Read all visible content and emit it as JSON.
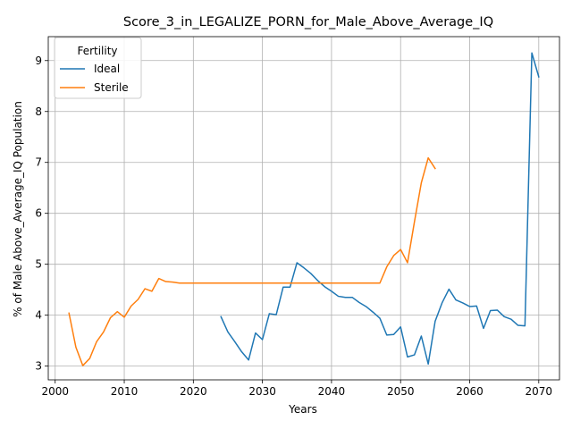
{
  "chart_data": {
    "type": "line",
    "title": "Score_3_in_LEGALIZE_PORN_for_Male_Above_Average_IQ",
    "xlabel": "Years",
    "ylabel": "% of Male Above_Average_IQ Population",
    "xlim": [
      1999,
      2073
    ],
    "ylim": [
      2.73,
      9.47
    ],
    "xticks": [
      2000,
      2010,
      2020,
      2030,
      2040,
      2050,
      2060,
      2070
    ],
    "yticks": [
      3,
      4,
      5,
      6,
      7,
      8,
      9
    ],
    "grid": true,
    "legend": {
      "title": "Fertility",
      "placement": "top-left"
    },
    "series": [
      {
        "name": "Ideal",
        "color": "#1f77b4",
        "x": [
          2024,
          2025,
          2026,
          2027,
          2028,
          2029,
          2030,
          2031,
          2032,
          2033,
          2034,
          2035,
          2036,
          2037,
          2038,
          2039,
          2040,
          2041,
          2042,
          2043,
          2044,
          2045,
          2046,
          2047,
          2048,
          2049,
          2050,
          2051,
          2052,
          2053,
          2054,
          2055,
          2056,
          2057,
          2058,
          2059,
          2060,
          2061,
          2062,
          2063,
          2064,
          2065,
          2066,
          2067,
          2068,
          2069,
          2070
        ],
        "y": [
          3.97,
          3.67,
          3.48,
          3.28,
          3.12,
          3.65,
          3.52,
          4.03,
          4.01,
          4.55,
          4.55,
          5.03,
          4.93,
          4.82,
          4.68,
          4.56,
          4.47,
          4.37,
          4.35,
          4.35,
          4.25,
          4.17,
          4.06,
          3.94,
          3.61,
          3.62,
          3.77,
          3.18,
          3.22,
          3.59,
          3.04,
          3.88,
          4.24,
          4.51,
          4.3,
          4.24,
          4.17,
          4.18,
          3.74,
          4.09,
          4.1,
          3.97,
          3.92,
          3.8,
          3.79,
          9.15,
          8.68
        ]
      },
      {
        "name": "Sterile",
        "color": "#ff7f0e",
        "x": [
          2002,
          2003,
          2004,
          2005,
          2006,
          2007,
          2008,
          2009,
          2010,
          2011,
          2012,
          2013,
          2014,
          2015,
          2016,
          2017,
          2018,
          2019,
          2020,
          2021,
          2022,
          2023,
          2024,
          2025,
          2026,
          2027,
          2028,
          2029,
          2030,
          2031,
          2032,
          2033,
          2034,
          2035,
          2036,
          2037,
          2038,
          2039,
          2040,
          2041,
          2042,
          2043,
          2044,
          2045,
          2046,
          2047,
          2048,
          2049,
          2050,
          2051,
          2052,
          2053,
          2054,
          2055
        ],
        "y": [
          4.04,
          3.37,
          3.01,
          3.15,
          3.48,
          3.67,
          3.95,
          4.07,
          3.96,
          4.18,
          4.31,
          4.52,
          4.47,
          4.72,
          4.66,
          4.65,
          4.63,
          4.63,
          4.63,
          4.63,
          4.63,
          4.63,
          4.63,
          4.63,
          4.63,
          4.63,
          4.63,
          4.63,
          4.63,
          4.63,
          4.63,
          4.63,
          4.63,
          4.63,
          4.63,
          4.63,
          4.63,
          4.63,
          4.63,
          4.63,
          4.63,
          4.63,
          4.63,
          4.63,
          4.63,
          4.63,
          4.95,
          5.17,
          5.29,
          5.03,
          5.83,
          6.6,
          7.09,
          6.88
        ]
      }
    ]
  }
}
